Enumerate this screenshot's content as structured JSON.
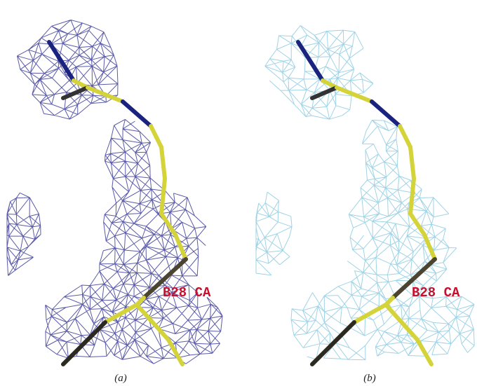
{
  "panels": [
    {
      "atom_label": "B28 CA",
      "caption": "(a)"
    },
    {
      "atom_label": "B28 CA",
      "caption": "(b)"
    }
  ]
}
